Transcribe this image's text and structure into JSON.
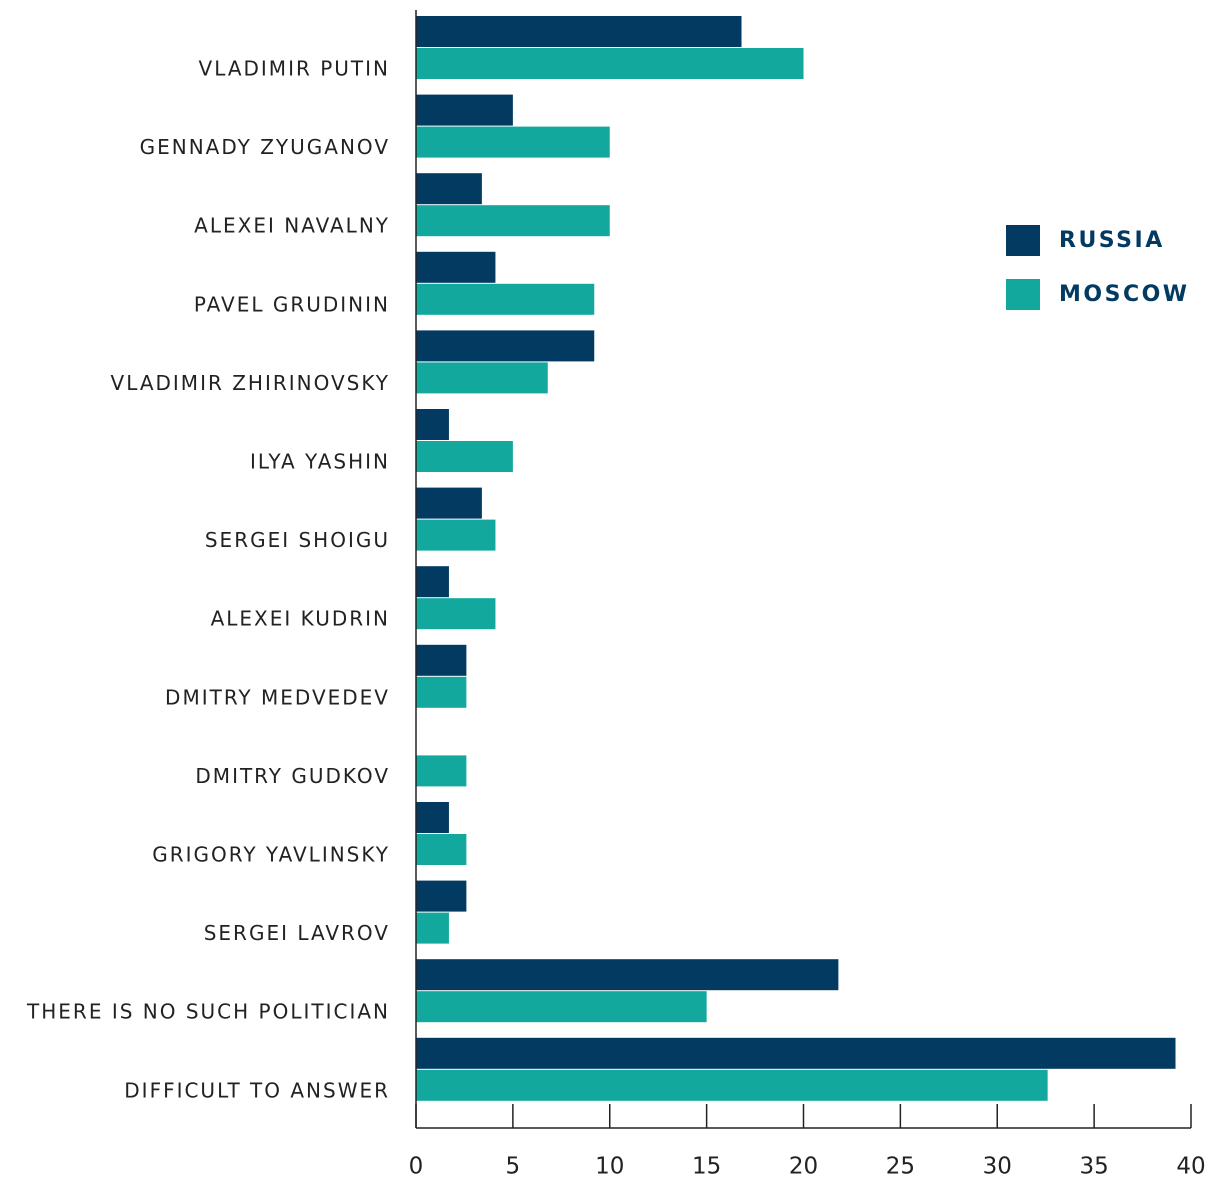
{
  "chart_data": {
    "type": "bar",
    "orientation": "horizontal",
    "categories": [
      "VLADIMIR PUTIN",
      "GENNADY ZYUGANOV",
      "ALEXEI NAVALNY",
      "PAVEL GRUDININ",
      "VLADIMIR ZHIRINOVSKY",
      "ILYA YASHIN",
      "SERGEI SHOIGU",
      "ALEXEI KUDRIN",
      "DMITRY MEDVEDEV",
      "DMITRY GUDKOV",
      "GRIGORY YAVLINSKY",
      "SERGEI LAVROV",
      "THERE IS NO SUCH POLITICIAN",
      "DIFFICULT TO ANSWER"
    ],
    "series": [
      {
        "name": "RUSSIA",
        "color": "#023a62",
        "values": [
          16.8,
          5.0,
          3.4,
          4.1,
          9.2,
          1.7,
          3.4,
          1.7,
          2.6,
          0,
          1.7,
          2.6,
          21.8,
          39.2
        ]
      },
      {
        "name": "MOSCOW",
        "color": "#12a89d",
        "values": [
          20.0,
          10.0,
          10.0,
          9.2,
          6.8,
          5.0,
          4.1,
          4.1,
          2.6,
          2.6,
          2.6,
          1.7,
          15.0,
          32.6
        ]
      }
    ],
    "xlim": [
      0,
      40
    ],
    "xticks": [
      0,
      5,
      10,
      15,
      20,
      25,
      30,
      35,
      40
    ]
  }
}
